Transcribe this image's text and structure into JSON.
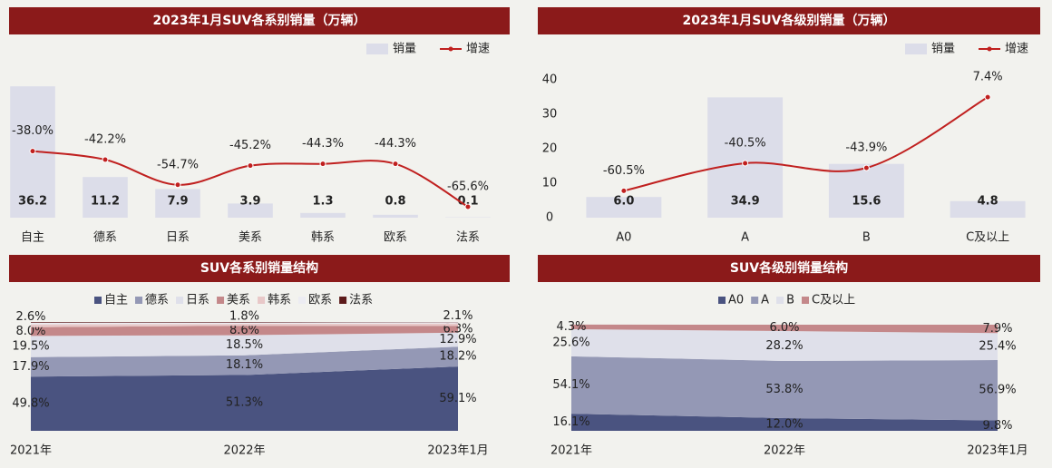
{
  "chart_data": [
    {
      "type": "bar",
      "title": "2023年1月SUV各系别销量（万辆）",
      "categories": [
        "自主",
        "德系",
        "日系",
        "美系",
        "韩系",
        "欧系",
        "法系"
      ],
      "ylim": [
        0,
        40
      ],
      "y2lim": [
        -71,
        1
      ],
      "series": [
        {
          "name": "销量",
          "color": "#dcdde9",
          "values": [
            36.2,
            11.2,
            7.9,
            3.9,
            1.3,
            0.8,
            0.1
          ]
        },
        {
          "name": "增速",
          "type": "line",
          "axis": "y2",
          "color": "#c0201f",
          "values": [
            -38.0,
            -42.2,
            -54.7,
            -45.2,
            -44.3,
            -44.3,
            -65.6
          ],
          "value_labels": [
            "-38.0%",
            "-42.2%",
            "-54.7%",
            "-45.2%",
            "-44.3%",
            "-44.3%",
            "-65.6%"
          ]
        }
      ]
    },
    {
      "type": "bar",
      "title": "2023年1月SUV各级别销量（万辆）",
      "categories": [
        "A0",
        "A",
        "B",
        "C及以上"
      ],
      "ylim": [
        0,
        40
      ],
      "yticks": [
        0,
        10,
        20,
        30,
        40
      ],
      "y2lim": [
        -80,
        20
      ],
      "series": [
        {
          "name": "销量",
          "color": "#dcdde9",
          "values": [
            6.0,
            34.9,
            15.6,
            4.8
          ],
          "value_labels": [
            "6.0",
            "34.9",
            "15.6",
            "4.8"
          ]
        },
        {
          "name": "增速",
          "type": "line",
          "axis": "y2",
          "color": "#c0201f",
          "values": [
            -60.5,
            -40.5,
            -43.9,
            7.4
          ],
          "value_labels": [
            "-60.5%",
            "-40.5%",
            "-43.9%",
            "7.4%"
          ]
        }
      ]
    },
    {
      "type": "area",
      "title": "SUV各系别销量结构",
      "x": [
        "2021年",
        "2022年",
        "2023年1月"
      ],
      "ylim": [
        0,
        100
      ],
      "series": [
        {
          "name": "自主",
          "color": "#4a5380",
          "values": [
            49.8,
            51.3,
            59.1
          ],
          "value_labels": [
            "49.8%",
            "51.3%",
            "59.1%"
          ]
        },
        {
          "name": "德系",
          "color": "#9498b5",
          "values": [
            17.9,
            18.1,
            18.2
          ],
          "value_labels": [
            "17.9%",
            "18.1%",
            "18.2%"
          ]
        },
        {
          "name": "日系",
          "color": "#dfe0ea",
          "values": [
            19.5,
            18.5,
            12.9
          ],
          "value_labels": [
            "19.5%",
            "18.5%",
            "12.9%"
          ]
        },
        {
          "name": "美系",
          "color": "#c4888a",
          "values": [
            8.0,
            8.6,
            6.3
          ],
          "value_labels": [
            "8.0%",
            "8.6%",
            "6.3%"
          ]
        },
        {
          "name": "韩系",
          "color": "#e8c8c8",
          "values": [
            2.6,
            1.8,
            2.1
          ],
          "value_labels": [
            "2.6%",
            "1.8%",
            "2.1%"
          ]
        },
        {
          "name": "欧系",
          "color": "#ececf2",
          "values": [
            1.6,
            1.2,
            1.2
          ]
        },
        {
          "name": "法系",
          "color": "#5c1a1a",
          "values": [
            0.6,
            0.5,
            0.2
          ]
        }
      ]
    },
    {
      "type": "area",
      "title": "SUV各级别销量结构",
      "x": [
        "2021年",
        "2022年",
        "2023年1月"
      ],
      "ylim": [
        0,
        100
      ],
      "series": [
        {
          "name": "A0",
          "color": "#4a5380",
          "values": [
            16.1,
            12.0,
            9.8
          ],
          "value_labels": [
            "16.1%",
            "12.0%",
            "9.8%"
          ]
        },
        {
          "name": "A",
          "color": "#9498b5",
          "values": [
            54.1,
            53.8,
            56.9
          ],
          "value_labels": [
            "54.1%",
            "53.8%",
            "56.9%"
          ]
        },
        {
          "name": "B",
          "color": "#dfe0ea",
          "values": [
            25.6,
            28.2,
            25.4
          ],
          "value_labels": [
            "25.6%",
            "28.2%",
            "25.4%"
          ]
        },
        {
          "name": "C及以上",
          "color": "#c4888a",
          "values": [
            4.3,
            6.0,
            7.9
          ],
          "value_labels": [
            "4.3%",
            "6.0%",
            "7.9%"
          ]
        }
      ]
    }
  ]
}
